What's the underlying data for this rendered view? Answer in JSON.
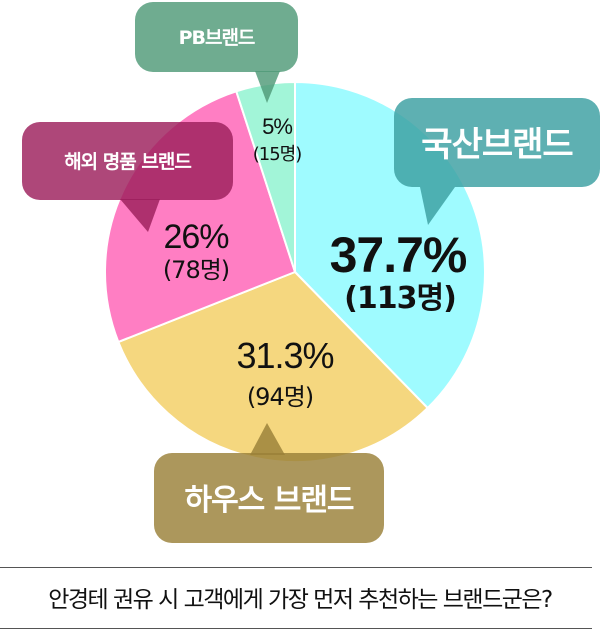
{
  "chart_data": {
    "type": "pie",
    "title": "안경테 권유 시 고객에게 가장 먼저 추천하는 브랜드군은?",
    "start": "12 o'clock, clockwise",
    "slices": [
      {
        "name": "국산브랜드",
        "value": 37.7,
        "value_label": "37.7%",
        "count_label": "(113명)",
        "color": "#9ffbff",
        "bubble_color": "#3b9fa1"
      },
      {
        "name": "하우스 브랜드",
        "value": 31.3,
        "value_label": "31.3%",
        "count_label": "(94명)",
        "color": "#f5d77f",
        "bubble_color": "#9a8038"
      },
      {
        "name": "해외 명품 브랜드",
        "value": 26,
        "value_label": "26%",
        "count_label": "(78명)",
        "color": "#ff7ec3",
        "bubble_color": "#9c1f5c"
      },
      {
        "name": "PB브랜드",
        "value": 5,
        "value_label": "5%",
        "count_label": "(15명)",
        "color": "#a2f5d8",
        "bubble_color": "#4f9a78"
      }
    ]
  }
}
